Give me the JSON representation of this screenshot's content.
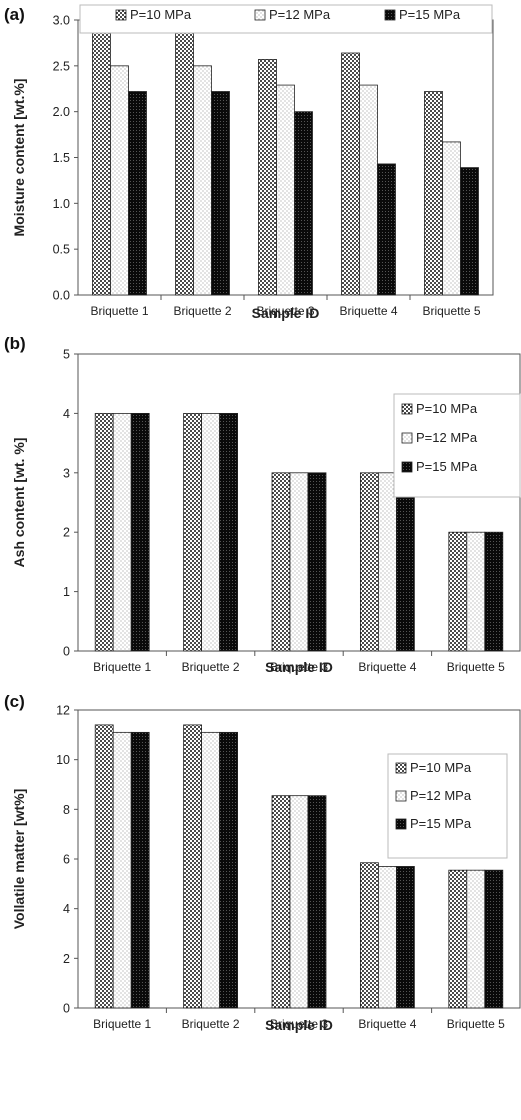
{
  "chart_data": [
    {
      "type": "bar",
      "panel_label": "(a)",
      "categories": [
        "Briquette 1",
        "Briquette 2",
        "Briquette 3",
        "Briquette 4",
        "Briquette 5"
      ],
      "series": [
        {
          "name": "P=10 MPa",
          "values": [
            2.86,
            2.86,
            2.57,
            2.64,
            2.22
          ]
        },
        {
          "name": "P=12 MPa",
          "values": [
            2.5,
            2.5,
            2.29,
            2.29,
            1.67
          ]
        },
        {
          "name": "P=15 MPa",
          "values": [
            2.22,
            2.22,
            2.0,
            1.43,
            1.39
          ]
        }
      ],
      "xlabel": "Sample ID",
      "ylabel": "Moisture content [wt.%]",
      "ylim": [
        0,
        3
      ],
      "yticks": [
        "0.0",
        "0.5",
        "1.0",
        "1.5",
        "2.0",
        "2.5",
        "3.0"
      ],
      "grid": false,
      "legend_position": "top"
    },
    {
      "type": "bar",
      "panel_label": "(b)",
      "categories": [
        "Briquette 1",
        "Briquette 2",
        "Briquette 3",
        "Briquette 4",
        "Briquette 5"
      ],
      "series": [
        {
          "name": "P=10 MPa",
          "values": [
            4,
            4,
            3,
            3,
            2
          ]
        },
        {
          "name": "P=12 MPa",
          "values": [
            4,
            4,
            3,
            3,
            2
          ]
        },
        {
          "name": "P=15 MPa",
          "values": [
            4,
            4,
            3,
            3,
            2
          ]
        }
      ],
      "xlabel": "Sample ID",
      "ylabel": "Ash content [wt. %]",
      "ylim": [
        0,
        5
      ],
      "yticks": [
        "0",
        "1",
        "2",
        "3",
        "4",
        "5"
      ],
      "grid": false,
      "legend_position": "top-right"
    },
    {
      "type": "bar",
      "panel_label": "(c)",
      "categories": [
        "Briquette 1",
        "Briquette 2",
        "Briquette 3",
        "Briquette 4",
        "Briquette 5"
      ],
      "series": [
        {
          "name": "P=10 MPa",
          "values": [
            11.4,
            11.4,
            8.55,
            5.85,
            5.55
          ]
        },
        {
          "name": "P=12 MPa",
          "values": [
            11.1,
            11.1,
            8.55,
            5.7,
            5.55
          ]
        },
        {
          "name": "P=15 MPa",
          "values": [
            11.1,
            11.1,
            8.55,
            5.7,
            5.55
          ]
        }
      ],
      "xlabel": "Sample ID",
      "ylabel": "Vollatile matter [wt%]",
      "ylim": [
        0,
        12
      ],
      "yticks": [
        "0",
        "2",
        "4",
        "6",
        "8",
        "10",
        "12"
      ],
      "grid": false,
      "legend_position": "top-right"
    }
  ]
}
